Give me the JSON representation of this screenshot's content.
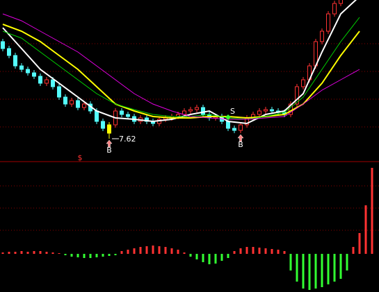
{
  "chart_data": {
    "type": "candlestick",
    "open": [
      9.02,
      8.92,
      8.82,
      8.67,
      8.62,
      8.57,
      8.52,
      8.42,
      8.47,
      8.37,
      8.22,
      8.12,
      8.17,
      8.07,
      8.12,
      8.02,
      7.87,
      7.7,
      7.82,
      8.02,
      7.97,
      7.94,
      7.87,
      7.92,
      7.87,
      7.84,
      7.9,
      7.92,
      7.94,
      7.97,
      8.02,
      8.04,
      8.07,
      7.97,
      7.92,
      7.94,
      7.87,
      7.77,
      7.74,
      7.82,
      7.92,
      7.97,
      8.02,
      8.04,
      8.02,
      8.0,
      7.97,
      8.12,
      8.37,
      8.47,
      8.67,
      9.02,
      9.17,
      9.42,
      9.57,
      9.72,
      9.82,
      9.92,
      9.87,
      9.97
    ],
    "high": [
      9.06,
      8.96,
      8.86,
      8.71,
      8.66,
      8.61,
      8.56,
      8.51,
      8.51,
      8.41,
      8.26,
      8.21,
      8.21,
      8.16,
      8.16,
      8.06,
      7.91,
      7.86,
      8.06,
      8.06,
      8.01,
      7.98,
      7.96,
      7.96,
      7.91,
      7.94,
      7.96,
      7.98,
      8.01,
      8.06,
      8.08,
      8.11,
      8.11,
      8.01,
      7.98,
      7.98,
      7.91,
      7.81,
      7.86,
      7.96,
      8.01,
      8.06,
      8.08,
      8.08,
      8.06,
      8.04,
      8.16,
      8.41,
      8.51,
      8.71,
      9.06,
      9.21,
      9.46,
      9.61,
      9.76,
      9.86,
      9.96,
      9.96,
      10.01,
      10.06
    ],
    "low": [
      8.88,
      8.78,
      8.63,
      8.58,
      8.53,
      8.48,
      8.38,
      8.38,
      8.33,
      8.18,
      8.08,
      8.08,
      8.03,
      8.03,
      7.98,
      7.83,
      7.73,
      7.62,
      7.78,
      7.93,
      7.9,
      7.83,
      7.83,
      7.83,
      7.8,
      7.8,
      7.86,
      7.88,
      7.9,
      7.93,
      7.98,
      8.0,
      7.93,
      7.88,
      7.88,
      7.83,
      7.73,
      7.7,
      7.7,
      7.78,
      7.88,
      7.93,
      7.98,
      7.98,
      7.96,
      7.93,
      7.93,
      8.08,
      8.33,
      8.43,
      8.63,
      8.98,
      9.13,
      9.38,
      9.53,
      9.68,
      9.78,
      9.83,
      9.83,
      9.93
    ],
    "close": [
      8.92,
      8.82,
      8.67,
      8.62,
      8.57,
      8.52,
      8.42,
      8.47,
      8.37,
      8.22,
      8.12,
      8.17,
      8.07,
      8.12,
      8.02,
      7.87,
      7.77,
      7.82,
      8.02,
      7.97,
      7.94,
      7.87,
      7.92,
      7.87,
      7.84,
      7.9,
      7.92,
      7.94,
      7.97,
      8.02,
      8.04,
      8.07,
      7.97,
      7.92,
      7.94,
      7.87,
      7.77,
      7.74,
      7.82,
      7.92,
      7.97,
      8.02,
      8.04,
      8.02,
      8.0,
      7.97,
      8.12,
      8.37,
      8.47,
      8.67,
      9.02,
      9.17,
      9.42,
      9.57,
      9.72,
      9.82,
      9.92,
      9.87,
      9.97,
      10.02
    ],
    "ylim": [
      7.3,
      9.62
    ],
    "up_color": "#ff3232",
    "down_color": "#54fcfc",
    "signal_color": "#ffff00",
    "ma_x": [
      0,
      3,
      6,
      9,
      12,
      15,
      18,
      21,
      24,
      27,
      30,
      33,
      36,
      39,
      42,
      45,
      48,
      51,
      54,
      57
    ],
    "series": [
      {
        "color": "#ffffff",
        "values": [
          9.22,
          8.92,
          8.62,
          8.42,
          8.22,
          8.02,
          7.92,
          7.9,
          7.87,
          7.9,
          7.97,
          8.02,
          7.87,
          7.84,
          7.97,
          8.02,
          8.27,
          8.87,
          9.42,
          9.67
        ]
      },
      {
        "color": "#ffff00",
        "values": [
          9.27,
          9.17,
          9.02,
          8.82,
          8.62,
          8.37,
          8.12,
          8.02,
          7.94,
          7.92,
          7.92,
          7.94,
          7.94,
          7.92,
          7.94,
          7.97,
          8.12,
          8.42,
          8.82,
          9.17
        ]
      },
      {
        "color": "#00d000",
        "values": [
          9.17,
          9.07,
          8.87,
          8.67,
          8.47,
          8.27,
          8.12,
          8.04,
          7.97,
          7.94,
          7.94,
          7.97,
          7.92,
          7.9,
          7.94,
          8.0,
          8.22,
          8.62,
          9.02,
          9.37
        ]
      },
      {
        "color": "#e000e0",
        "values": [
          9.42,
          9.32,
          9.17,
          9.02,
          8.87,
          8.67,
          8.47,
          8.27,
          8.12,
          8.02,
          7.94,
          7.92,
          7.9,
          7.9,
          7.92,
          7.94,
          8.12,
          8.32,
          8.47,
          8.62
        ]
      }
    ],
    "macd": [
      0.01,
      0.015,
      0.015,
      0.02,
      0.015,
      0.02,
      0.02,
      0.015,
      0.01,
      0.005,
      -0.01,
      -0.02,
      -0.025,
      -0.03,
      -0.03,
      -0.025,
      -0.02,
      -0.015,
      -0.01,
      0.02,
      0.03,
      0.04,
      0.05,
      0.055,
      0.06,
      0.055,
      0.05,
      0.04,
      0.03,
      0.01,
      -0.02,
      -0.04,
      -0.06,
      -0.075,
      -0.07,
      -0.05,
      -0.03,
      0.02,
      0.04,
      0.05,
      0.05,
      0.045,
      0.04,
      0.035,
      0.03,
      0.02,
      -0.12,
      -0.2,
      -0.25,
      -0.26,
      -0.25,
      -0.24,
      -0.22,
      -0.2,
      -0.18,
      -0.12,
      0.05,
      0.15,
      0.35,
      0.62
    ],
    "macd_lim": [
      -0.275,
      0.66
    ],
    "macd_up_color": "#ff3232",
    "macd_down_color": "#32ff32",
    "signals": [
      {
        "label": "B",
        "index": 17
      },
      {
        "label": "S",
        "index": 36
      },
      {
        "label": "B",
        "index": 38
      }
    ],
    "marker": "$"
  }
}
